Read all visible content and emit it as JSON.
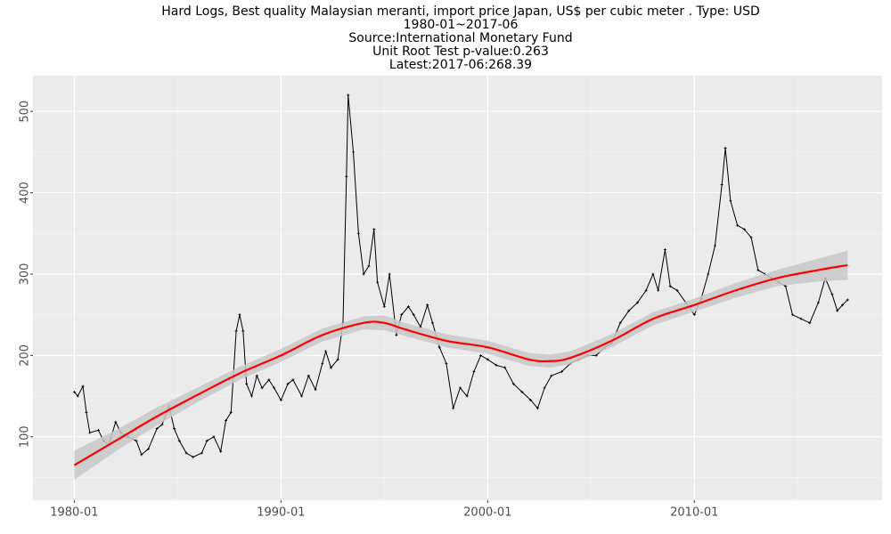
{
  "chart_data": {
    "type": "line",
    "title": [
      "Hard Logs, Best quality Malaysian meranti, import price Japan, US$ per cubic meter . Type: USD",
      "1980-01~2017-06",
      "Source:International Monetary Fund",
      "Unit Root Test p-value:0.263",
      "Latest:2017-06:268.39"
    ],
    "x": [
      "1980-01",
      "1980-03",
      "1980-06",
      "1980-08",
      "1980-10",
      "1981-03",
      "1981-06",
      "1981-09",
      "1982-01",
      "1982-04",
      "1982-08",
      "1983-01",
      "1983-04",
      "1983-08",
      "1984-01",
      "1984-04",
      "1984-08",
      "1984-11",
      "1985-02",
      "1985-06",
      "1985-10",
      "1986-03",
      "1986-06",
      "1986-10",
      "1987-02",
      "1987-05",
      "1987-08",
      "1987-11",
      "1988-01",
      "1988-03",
      "1988-05",
      "1988-08",
      "1988-11",
      "1989-02",
      "1989-06",
      "1989-09",
      "1990-01",
      "1990-05",
      "1990-08",
      "1991-01",
      "1991-05",
      "1991-09",
      "1992-01",
      "1992-03",
      "1992-06",
      "1992-10",
      "1993-01",
      "1993-03",
      "1993-04",
      "1993-07",
      "1993-10",
      "1994-01",
      "1994-04",
      "1994-07",
      "1994-09",
      "1995-01",
      "1995-04",
      "1995-08",
      "1995-11",
      "1996-03",
      "1996-06",
      "1996-10",
      "1997-02",
      "1997-05",
      "1997-09",
      "1998-01",
      "1998-05",
      "1998-09",
      "1999-01",
      "1999-05",
      "1999-09",
      "2000-01",
      "2000-06",
      "2000-11",
      "2001-04",
      "2001-09",
      "2002-02",
      "2002-06",
      "2002-10",
      "2003-02",
      "2003-08",
      "2004-01",
      "2004-06",
      "2004-11",
      "2005-04",
      "2005-09",
      "2006-01",
      "2006-06",
      "2006-11",
      "2007-04",
      "2007-09",
      "2008-01",
      "2008-04",
      "2008-08",
      "2008-11",
      "2009-03",
      "2009-08",
      "2010-01",
      "2010-05",
      "2010-09",
      "2011-01",
      "2011-05",
      "2011-07",
      "2011-10",
      "2012-02",
      "2012-06",
      "2012-10",
      "2013-02",
      "2013-06",
      "2013-10",
      "2014-02",
      "2014-06",
      "2014-10",
      "2015-03",
      "2015-08",
      "2016-01",
      "2016-05",
      "2016-09",
      "2016-12",
      "2017-03",
      "2017-06"
    ],
    "series": [
      {
        "color": "#000000",
        "values": [
          155,
          150,
          162,
          130,
          105,
          108,
          95,
          90,
          118,
          105,
          100,
          95,
          78,
          85,
          110,
          115,
          138,
          110,
          95,
          80,
          75,
          80,
          95,
          100,
          82,
          120,
          130,
          230,
          250,
          230,
          165,
          150,
          175,
          160,
          170,
          160,
          145,
          165,
          170,
          150,
          175,
          158,
          190,
          205,
          185,
          195,
          240,
          420,
          520,
          450,
          350,
          300,
          310,
          355,
          290,
          260,
          300,
          225,
          250,
          260,
          250,
          235,
          262,
          240,
          210,
          190,
          135,
          160,
          150,
          180,
          200,
          195,
          188,
          185,
          165,
          155,
          145,
          135,
          160,
          175,
          180,
          190,
          195,
          200,
          200,
          210,
          215,
          240,
          255,
          265,
          280,
          300,
          280,
          330,
          285,
          280,
          265,
          250,
          270,
          300,
          335,
          410,
          455,
          390,
          360,
          355,
          345,
          305,
          300,
          295,
          290,
          285,
          250,
          245,
          240,
          265,
          295,
          275,
          255,
          262,
          268.39
        ]
      }
    ],
    "trend": {
      "color": "#ff0000",
      "band_color": "#c8c8c8",
      "x": [
        "1980-01",
        "1982-01",
        "1984-01",
        "1986-01",
        "1988-01",
        "1990-01",
        "1992-01",
        "1994-01",
        "1995-01",
        "1996-01",
        "1998-01",
        "2000-01",
        "2002-01",
        "2003-01",
        "2004-01",
        "2006-01",
        "2008-01",
        "2010-01",
        "2012-01",
        "2014-01",
        "2016-01",
        "2017-06"
      ],
      "values": [
        65,
        95,
        125,
        152,
        178,
        200,
        225,
        240,
        240,
        232,
        218,
        210,
        195,
        193,
        197,
        218,
        245,
        262,
        280,
        295,
        305,
        311
      ],
      "lower": [
        47,
        82,
        114,
        143,
        170,
        192,
        217,
        232,
        231,
        224,
        210,
        202,
        187,
        185,
        189,
        210,
        237,
        254,
        271,
        285,
        291,
        293
      ],
      "upper": [
        83,
        108,
        136,
        161,
        186,
        208,
        233,
        248,
        249,
        240,
        226,
        218,
        203,
        201,
        205,
        226,
        253,
        270,
        289,
        305,
        319,
        329
      ]
    },
    "xlim": [
      "1978-01",
      "2019-02"
    ],
    "xticks": [
      "1980-01",
      "1990-01",
      "2000-01",
      "2010-01"
    ],
    "ylim": [
      22,
      544
    ],
    "yticks": [
      100,
      200,
      300,
      400,
      500
    ],
    "grid": true
  }
}
